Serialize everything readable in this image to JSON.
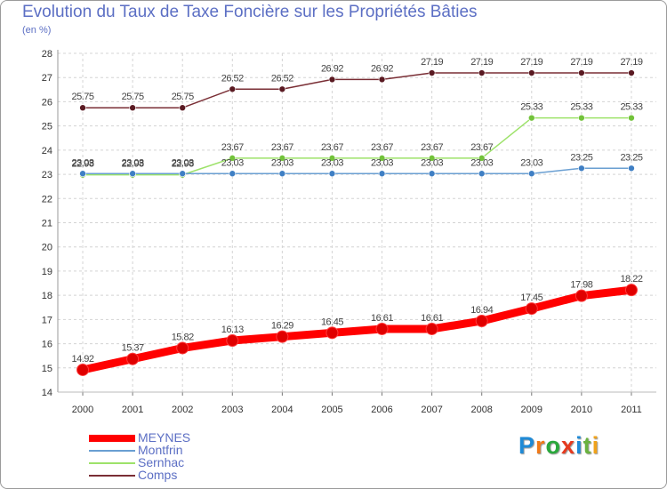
{
  "title": "Evolution du Taux de Taxe Foncière sur les Propriétés Bâties",
  "unit_label": "(en %)",
  "brand": {
    "text": "Proxiti",
    "letters": [
      "P",
      "r",
      "o",
      "x",
      "i",
      "t",
      "i"
    ],
    "colors": [
      "#1f8ad6",
      "#f07a1a",
      "#2aa83c",
      "#e63a1f",
      "#1f8ad6",
      "#6ab23f",
      "#f0a21a"
    ]
  },
  "chart_data": {
    "type": "line",
    "title": "Evolution du Taux de Taxe Foncière sur les Propriétés Bâties",
    "ylabel": "(en %)",
    "xlabel": "",
    "x": [
      2000,
      2001,
      2002,
      2003,
      2004,
      2005,
      2006,
      2007,
      2008,
      2009,
      2010,
      2011
    ],
    "ylim": [
      14,
      28
    ],
    "yticks": [
      14,
      15,
      16,
      17,
      18,
      19,
      20,
      21,
      22,
      23,
      24,
      25,
      26,
      27,
      28
    ],
    "grid": true,
    "series": [
      {
        "name": "Comps",
        "color": "#7a2e35",
        "marker": "#5a1a22",
        "values": [
          25.75,
          25.75,
          25.75,
          26.52,
          26.52,
          26.92,
          26.92,
          27.19,
          27.19,
          27.19,
          27.19,
          27.19
        ],
        "labels": [
          "25.75",
          "25.75",
          "25.75",
          "26.52",
          "26.52",
          "26.92",
          "26.92",
          "27.19",
          "27.19",
          "27.19",
          "27.19",
          "27.19"
        ]
      },
      {
        "name": "Sernhac",
        "color": "#9de26a",
        "marker": "#72c23a",
        "values": [
          22.98,
          22.98,
          22.98,
          23.67,
          23.67,
          23.67,
          23.67,
          23.67,
          23.67,
          25.33,
          25.33,
          25.33
        ],
        "labels": [
          "22.98",
          "22.98",
          "22.98",
          "23.67",
          "23.67",
          "23.67",
          "23.67",
          "23.67",
          "23.67",
          "25.33",
          "25.33",
          "25.33"
        ]
      },
      {
        "name": "Montfrin",
        "color": "#6a9fd2",
        "marker": "#3f7fc4",
        "values": [
          23.03,
          23.03,
          23.03,
          23.03,
          23.03,
          23.03,
          23.03,
          23.03,
          23.03,
          23.03,
          23.25,
          23.25
        ],
        "labels": [
          "23.03",
          "23.03",
          "23.03",
          "23.03",
          "23.03",
          "23.03",
          "23.03",
          "23.03",
          "23.03",
          "23.03",
          "23.25",
          "23.25"
        ]
      },
      {
        "name": "MEYNES",
        "color": "#ff0000",
        "marker": "#e00000",
        "values": [
          14.92,
          15.37,
          15.82,
          16.13,
          16.29,
          16.45,
          16.61,
          16.61,
          16.94,
          17.45,
          17.98,
          18.22
        ],
        "labels": [
          "14.92",
          "15.37",
          "15.82",
          "16.13",
          "16.29",
          "16.45",
          "16.61",
          "16.61",
          "16.94",
          "17.45",
          "17.98",
          "18.22"
        ]
      }
    ],
    "legend": [
      {
        "name": "MEYNES",
        "color": "#ff0000"
      },
      {
        "name": "Montfrin",
        "color": "#6a9fd2"
      },
      {
        "name": "Sernhac",
        "color": "#9de26a"
      },
      {
        "name": "Comps",
        "color": "#7a2e35"
      }
    ]
  }
}
